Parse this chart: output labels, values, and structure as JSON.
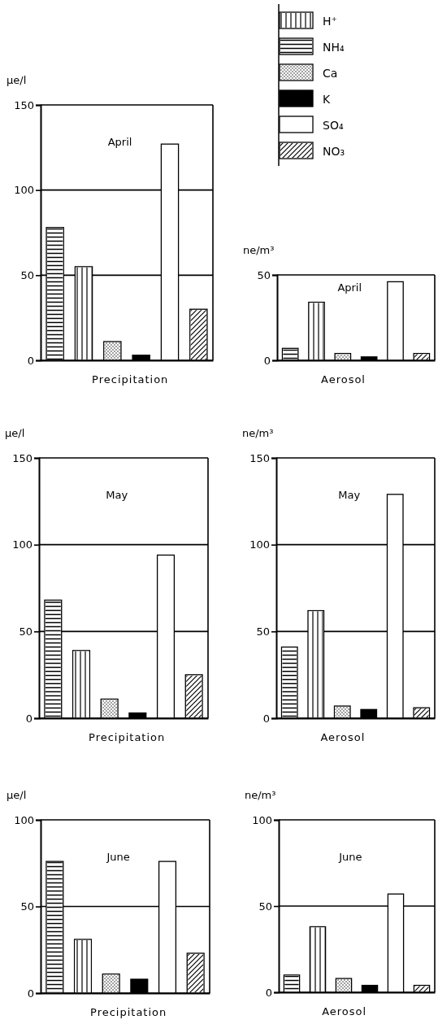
{
  "chart_data": [
    {
      "type": "bar",
      "title": "April",
      "xlabel": "Precipitation",
      "ylabel": "μe/l",
      "categories": [
        null,
        null,
        null,
        null,
        null,
        null
      ],
      "ylim": [
        0,
        150
      ],
      "yticks": [
        0,
        50,
        100,
        150
      ],
      "grid": "y",
      "legend": "top right",
      "series": [
        {
          "name": "H⁺",
          "color": "#000000",
          "values": [
            null,
            55,
            null,
            null,
            null,
            null
          ]
        },
        {
          "name": "NH₄",
          "color": "#000000",
          "values": [
            78,
            null,
            null,
            null,
            null,
            null
          ]
        },
        {
          "name": "Ca",
          "color": "#000000",
          "values": [
            null,
            null,
            11,
            null,
            null,
            null
          ]
        },
        {
          "name": "K",
          "color": "#000000",
          "values": [
            null,
            null,
            null,
            3,
            null,
            null
          ]
        },
        {
          "name": "SO₄",
          "color": "#000000",
          "values": [
            null,
            null,
            null,
            null,
            127,
            null
          ]
        },
        {
          "name": "NO₃",
          "color": "#000000",
          "values": [
            null,
            null,
            null,
            null,
            null,
            30
          ]
        }
      ]
    },
    {
      "type": "bar",
      "title": "April",
      "xlabel": "Aerosol",
      "ylabel": "ne/m³",
      "categories": [
        null,
        null,
        null,
        null,
        null,
        null
      ],
      "ylim": [
        0,
        50
      ],
      "yticks": [
        0,
        50
      ],
      "grid": "y",
      "series": [
        {
          "color": "#000000",
          "values": [
            null,
            34,
            null,
            null,
            null,
            null
          ]
        },
        {
          "color": "#000000",
          "values": [
            7,
            null,
            null,
            null,
            null,
            null
          ]
        },
        {
          "color": "#000000",
          "values": [
            null,
            null,
            4,
            null,
            null,
            null
          ]
        },
        {
          "color": "#000000",
          "values": [
            null,
            null,
            null,
            2,
            null,
            null
          ]
        },
        {
          "color": "#000000",
          "values": [
            null,
            null,
            null,
            null,
            46,
            null
          ]
        },
        {
          "color": "#000000",
          "values": [
            null,
            null,
            null,
            null,
            null,
            4
          ]
        }
      ]
    },
    {
      "type": "bar",
      "title": "May",
      "xlabel": "Precipitation",
      "ylabel": "μe/l",
      "categories": [
        null,
        null,
        null,
        null,
        null,
        null
      ],
      "ylim": [
        0,
        150
      ],
      "yticks": [
        0,
        50,
        100,
        150
      ],
      "grid": "y",
      "series": [
        {
          "color": "#000000",
          "values": [
            null,
            39,
            null,
            null,
            null,
            null
          ]
        },
        {
          "color": "#000000",
          "values": [
            68,
            null,
            null,
            null,
            null,
            null
          ]
        },
        {
          "color": "#000000",
          "values": [
            null,
            null,
            11,
            null,
            null,
            null
          ]
        },
        {
          "color": "#000000",
          "values": [
            null,
            null,
            null,
            3,
            null,
            null
          ]
        },
        {
          "color": "#000000",
          "values": [
            null,
            null,
            null,
            null,
            94,
            null
          ]
        },
        {
          "color": "#000000",
          "values": [
            null,
            null,
            null,
            null,
            null,
            25
          ]
        }
      ]
    },
    {
      "type": "bar",
      "title": "May",
      "xlabel": "Aerosol",
      "ylabel": "ne/m³",
      "categories": [
        null,
        null,
        null,
        null,
        null,
        null
      ],
      "ylim": [
        0,
        150
      ],
      "yticks": [
        0,
        50,
        100,
        150
      ],
      "grid": "y",
      "series": [
        {
          "color": "#000000",
          "values": [
            null,
            62,
            null,
            null,
            null,
            null
          ]
        },
        {
          "color": "#000000",
          "values": [
            41,
            null,
            null,
            null,
            null,
            null
          ]
        },
        {
          "color": "#000000",
          "values": [
            null,
            null,
            7,
            null,
            null,
            null
          ]
        },
        {
          "color": "#000000",
          "values": [
            null,
            null,
            null,
            5,
            null,
            null
          ]
        },
        {
          "color": "#000000",
          "values": [
            null,
            null,
            null,
            null,
            129,
            null
          ]
        },
        {
          "color": "#000000",
          "values": [
            null,
            null,
            null,
            null,
            null,
            6
          ]
        }
      ]
    },
    {
      "type": "bar",
      "title": "June",
      "xlabel": "Precipitation",
      "ylabel": "μe/l",
      "categories": [
        null,
        null,
        null,
        null,
        null,
        null
      ],
      "ylim": [
        0,
        100
      ],
      "yticks": [
        0,
        50,
        100
      ],
      "grid": "y",
      "series": [
        {
          "color": "#000000",
          "values": [
            null,
            31,
            null,
            null,
            null,
            null
          ]
        },
        {
          "color": "#000000",
          "values": [
            76,
            null,
            null,
            null,
            null,
            null
          ]
        },
        {
          "color": "#000000",
          "values": [
            null,
            null,
            11,
            null,
            null,
            null
          ]
        },
        {
          "color": "#000000",
          "values": [
            null,
            null,
            null,
            8,
            null,
            null
          ]
        },
        {
          "color": "#000000",
          "values": [
            null,
            null,
            null,
            null,
            76,
            null
          ]
        },
        {
          "color": "#000000",
          "values": [
            null,
            null,
            null,
            null,
            null,
            23
          ]
        }
      ]
    },
    {
      "type": "bar",
      "title": "June",
      "xlabel": "Aerosol",
      "ylabel": "ne/m³",
      "categories": [
        null,
        null,
        null,
        null,
        null,
        null
      ],
      "ylim": [
        0,
        100
      ],
      "yticks": [
        0,
        50,
        100
      ],
      "grid": "y",
      "series": [
        {
          "color": "#000000",
          "values": [
            null,
            38,
            null,
            null,
            null,
            null
          ]
        },
        {
          "color": "#000000",
          "values": [
            10,
            null,
            null,
            null,
            null,
            null
          ]
        },
        {
          "color": "#000000",
          "values": [
            null,
            null,
            8,
            null,
            null,
            null
          ]
        },
        {
          "color": "#000000",
          "values": [
            null,
            null,
            null,
            4,
            null,
            null
          ]
        },
        {
          "color": "#000000",
          "values": [
            null,
            null,
            null,
            null,
            57,
            null
          ]
        },
        {
          "color": "#000000",
          "values": [
            null,
            null,
            null,
            null,
            null,
            4
          ]
        }
      ]
    }
  ]
}
